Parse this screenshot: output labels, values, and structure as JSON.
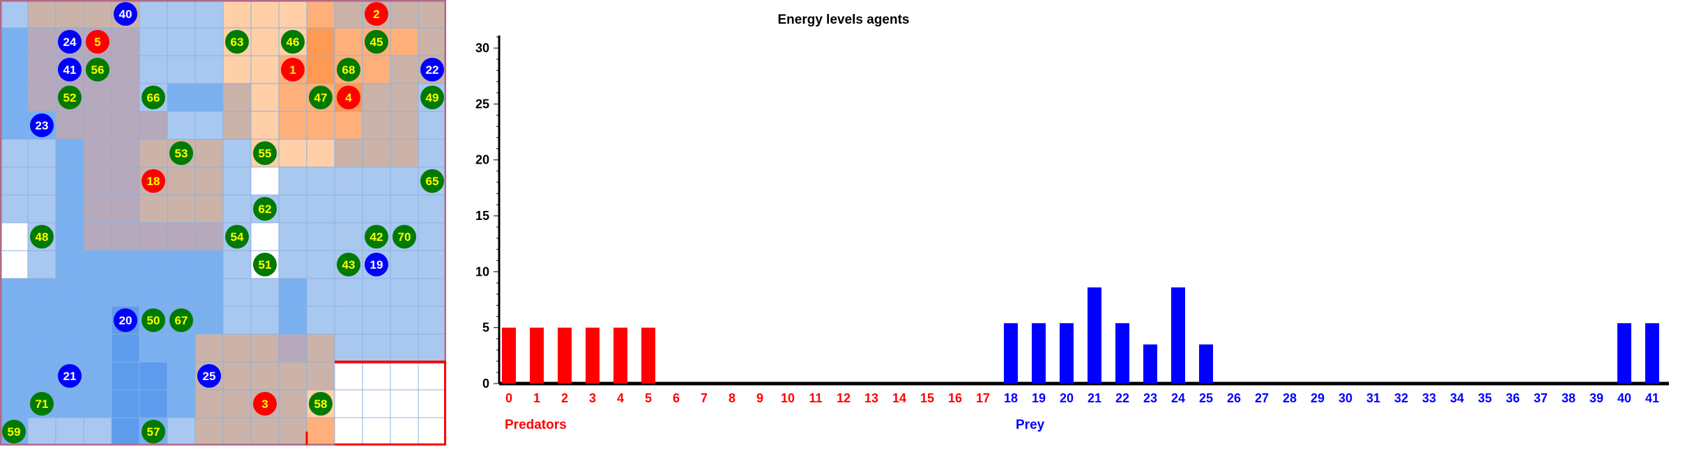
{
  "grid": {
    "rows": 16,
    "cols": 16,
    "cell_colors": [
      [
        "#a9c8f0",
        "#cbb3a9",
        "#cbb3a9",
        "#cbb3a9",
        "#cbb3a9",
        "#a9c8f0",
        "#a9c8f0",
        "#a9c8f0",
        "#ffd0a8",
        "#ffd0a8",
        "#ffd0a8",
        "#ffb07a",
        "#cbb3a9",
        "#cbb3a9",
        "#cbb3a9",
        "#cbb3a9"
      ],
      [
        "#7ab0ef",
        "#b6a9bc",
        "#b6a9bc",
        "#b6a9bc",
        "#b6a9bc",
        "#a9c8f0",
        "#a9c8f0",
        "#a9c8f0",
        "#ffd0a8",
        "#ffd0a8",
        "#ffd0a8",
        "#ff9a55",
        "#ffb07a",
        "#ffb07a",
        "#ffb07a",
        "#cbb3a9"
      ],
      [
        "#7ab0ef",
        "#b6a9bc",
        "#b6a9bc",
        "#b6a9bc",
        "#b6a9bc",
        "#a9c8f0",
        "#a9c8f0",
        "#a9c8f0",
        "#ffd0a8",
        "#ffd0a8",
        "#ffb07a",
        "#ff9a55",
        "#ffb07a",
        "#ffb07a",
        "#cbb3a9",
        "#cbb3a9"
      ],
      [
        "#7ab0ef",
        "#b6a9bc",
        "#b6a9bc",
        "#b6a9bc",
        "#b6a9bc",
        "#a9c8f0",
        "#7ab0ef",
        "#7ab0ef",
        "#cbb3a9",
        "#ffd0a8",
        "#ffb07a",
        "#ffb07a",
        "#ff9a55",
        "#cbb3a9",
        "#cbb3a9",
        "#a9c8f0"
      ],
      [
        "#7ab0ef",
        "#7ab0ef",
        "#b6a9bc",
        "#b6a9bc",
        "#b6a9bc",
        "#b6a9bc",
        "#a9c8f0",
        "#a9c8f0",
        "#cbb3a9",
        "#ffd0a8",
        "#ffb07a",
        "#ffb07a",
        "#ffb07a",
        "#cbb3a9",
        "#cbb3a9",
        "#a9c8f0"
      ],
      [
        "#a9c8f0",
        "#a9c8f0",
        "#7ab0ef",
        "#b6a9bc",
        "#b6a9bc",
        "#cbb3a9",
        "#cbb3a9",
        "#cbb3a9",
        "#a9c8f0",
        "#ffd0a8",
        "#ffd0a8",
        "#ffd0a8",
        "#cbb3a9",
        "#cbb3a9",
        "#cbb3a9",
        "#a9c8f0"
      ],
      [
        "#a9c8f0",
        "#a9c8f0",
        "#7ab0ef",
        "#b6a9bc",
        "#b6a9bc",
        "#cbb3a9",
        "#cbb3a9",
        "#cbb3a9",
        "#a9c8f0",
        "#ffffff",
        "#a9c8f0",
        "#a9c8f0",
        "#a9c8f0",
        "#a9c8f0",
        "#a9c8f0",
        "#a9c8f0"
      ],
      [
        "#a9c8f0",
        "#a9c8f0",
        "#7ab0ef",
        "#b6a9bc",
        "#b6a9bc",
        "#cbb3a9",
        "#cbb3a9",
        "#cbb3a9",
        "#a9c8f0",
        "#a9c8f0",
        "#a9c8f0",
        "#a9c8f0",
        "#a9c8f0",
        "#a9c8f0",
        "#a9c8f0",
        "#a9c8f0"
      ],
      [
        "#ffffff",
        "#a9c8f0",
        "#7ab0ef",
        "#b6a9bc",
        "#b6a9bc",
        "#b6a9bc",
        "#b6a9bc",
        "#b6a9bc",
        "#a9c8f0",
        "#ffffff",
        "#a9c8f0",
        "#a9c8f0",
        "#a9c8f0",
        "#a9c8f0",
        "#a9c8f0",
        "#a9c8f0"
      ],
      [
        "#ffffff",
        "#a9c8f0",
        "#7ab0ef",
        "#7ab0ef",
        "#7ab0ef",
        "#7ab0ef",
        "#7ab0ef",
        "#7ab0ef",
        "#a9c8f0",
        "#ffffff",
        "#a9c8f0",
        "#a9c8f0",
        "#a9c8f0",
        "#a9c8f0",
        "#a9c8f0",
        "#a9c8f0"
      ],
      [
        "#7ab0ef",
        "#7ab0ef",
        "#7ab0ef",
        "#7ab0ef",
        "#7ab0ef",
        "#7ab0ef",
        "#7ab0ef",
        "#7ab0ef",
        "#a9c8f0",
        "#a9c8f0",
        "#7ab0ef",
        "#a9c8f0",
        "#a9c8f0",
        "#a9c8f0",
        "#a9c8f0",
        "#a9c8f0"
      ],
      [
        "#7ab0ef",
        "#7ab0ef",
        "#7ab0ef",
        "#7ab0ef",
        "#5d9cec",
        "#7ab0ef",
        "#7ab0ef",
        "#7ab0ef",
        "#a9c8f0",
        "#a9c8f0",
        "#7ab0ef",
        "#a9c8f0",
        "#a9c8f0",
        "#a9c8f0",
        "#a9c8f0",
        "#a9c8f0"
      ],
      [
        "#7ab0ef",
        "#7ab0ef",
        "#7ab0ef",
        "#7ab0ef",
        "#5d9cec",
        "#7ab0ef",
        "#7ab0ef",
        "#cbb3a9",
        "#cbb3a9",
        "#cbb3a9",
        "#b6a9bc",
        "#cbb3a9",
        "#a9c8f0",
        "#a9c8f0",
        "#a9c8f0",
        "#a9c8f0"
      ],
      [
        "#7ab0ef",
        "#7ab0ef",
        "#7ab0ef",
        "#7ab0ef",
        "#5d9cec",
        "#5d9cec",
        "#7ab0ef",
        "#cbb3a9",
        "#cbb3a9",
        "#cbb3a9",
        "#cbb3a9",
        "#cbb3a9",
        "#ffffff",
        "#ffffff",
        "#ffffff",
        "#ffffff"
      ],
      [
        "#7ab0ef",
        "#7ab0ef",
        "#7ab0ef",
        "#7ab0ef",
        "#5d9cec",
        "#5d9cec",
        "#7ab0ef",
        "#cbb3a9",
        "#cbb3a9",
        "#cbb3a9",
        "#cbb3a9",
        "#ffd0a8",
        "#ffffff",
        "#ffffff",
        "#ffffff",
        "#ffffff"
      ],
      [
        "#7ab0ef",
        "#a9c8f0",
        "#a9c8f0",
        "#a9c8f0",
        "#5d9cec",
        "#7ab0ef",
        "#a9c8f0",
        "#cbb3a9",
        "#cbb3a9",
        "#cbb3a9",
        "#cbb3a9",
        "#ffb07a",
        "#ffffff",
        "#ffffff",
        "#ffffff",
        "#ffffff"
      ]
    ],
    "agents": [
      {
        "label": "40",
        "kind": "prey",
        "col": 4,
        "row": 0
      },
      {
        "label": "2",
        "kind": "predator",
        "col": 13,
        "row": 0
      },
      {
        "label": "24",
        "kind": "prey",
        "col": 2,
        "row": 1
      },
      {
        "label": "5",
        "kind": "predator",
        "col": 3,
        "row": 1
      },
      {
        "label": "63",
        "kind": "green",
        "col": 8,
        "row": 1
      },
      {
        "label": "46",
        "kind": "green",
        "col": 10,
        "row": 1
      },
      {
        "label": "45",
        "kind": "green",
        "col": 13,
        "row": 1
      },
      {
        "label": "41",
        "kind": "prey",
        "col": 2,
        "row": 2
      },
      {
        "label": "56",
        "kind": "green",
        "col": 3,
        "row": 2
      },
      {
        "label": "1",
        "kind": "predator",
        "col": 10,
        "row": 2
      },
      {
        "label": "68",
        "kind": "green",
        "col": 12,
        "row": 2
      },
      {
        "label": "22",
        "kind": "prey",
        "col": 15,
        "row": 2
      },
      {
        "label": "52",
        "kind": "green",
        "col": 2,
        "row": 3
      },
      {
        "label": "66",
        "kind": "green",
        "col": 5,
        "row": 3
      },
      {
        "label": "47",
        "kind": "green",
        "col": 11,
        "row": 3
      },
      {
        "label": "4",
        "kind": "predator",
        "col": 12,
        "row": 3
      },
      {
        "label": "49",
        "kind": "green",
        "col": 15,
        "row": 3
      },
      {
        "label": "23",
        "kind": "prey",
        "col": 1,
        "row": 4
      },
      {
        "label": "53",
        "kind": "green",
        "col": 6,
        "row": 5
      },
      {
        "label": "55",
        "kind": "green",
        "col": 9,
        "row": 5
      },
      {
        "label": "18",
        "kind": "predator",
        "col": 5,
        "row": 6
      },
      {
        "label": "65",
        "kind": "green",
        "col": 15,
        "row": 6
      },
      {
        "label": "62",
        "kind": "green",
        "col": 9,
        "row": 7
      },
      {
        "label": "48",
        "kind": "green",
        "col": 1,
        "row": 8
      },
      {
        "label": "54",
        "kind": "green",
        "col": 8,
        "row": 8
      },
      {
        "label": "42",
        "kind": "green",
        "col": 13,
        "row": 8
      },
      {
        "label": "70",
        "kind": "green",
        "col": 14,
        "row": 8
      },
      {
        "label": "51",
        "kind": "green",
        "col": 9,
        "row": 9
      },
      {
        "label": "43",
        "kind": "green",
        "col": 12,
        "row": 9
      },
      {
        "label": "19",
        "kind": "prey",
        "col": 13,
        "row": 9
      },
      {
        "label": "20",
        "kind": "prey",
        "col": 4,
        "row": 11
      },
      {
        "label": "50",
        "kind": "green",
        "col": 5,
        "row": 11
      },
      {
        "label": "67",
        "kind": "green",
        "col": 6,
        "row": 11
      },
      {
        "label": "21",
        "kind": "prey",
        "col": 2,
        "row": 13
      },
      {
        "label": "25",
        "kind": "prey",
        "col": 7,
        "row": 13
      },
      {
        "label": "71",
        "kind": "green",
        "col": 1,
        "row": 14
      },
      {
        "label": "3",
        "kind": "predator",
        "col": 9,
        "row": 14
      },
      {
        "label": "58",
        "kind": "green",
        "col": 11,
        "row": 14
      },
      {
        "label": "59",
        "kind": "green",
        "col": 0,
        "row": 15
      },
      {
        "label": "57",
        "kind": "green",
        "col": 5,
        "row": 15
      }
    ]
  },
  "chart_data": {
    "type": "bar",
    "title": "Energy levels agents",
    "xlabel": "",
    "ylabel": "",
    "ylim": [
      0,
      31
    ],
    "yticks": [
      "0",
      "5",
      "10",
      "15",
      "20",
      "25",
      "30"
    ],
    "grid": false,
    "categories": [
      "0",
      "1",
      "2",
      "3",
      "4",
      "5",
      "6",
      "7",
      "8",
      "9",
      "10",
      "11",
      "12",
      "13",
      "14",
      "15",
      "16",
      "17",
      "18",
      "19",
      "20",
      "21",
      "22",
      "23",
      "24",
      "25",
      "26",
      "27",
      "28",
      "29",
      "30",
      "31",
      "32",
      "33",
      "34",
      "35",
      "36",
      "37",
      "38",
      "39",
      "40",
      "41"
    ],
    "values": [
      5,
      5,
      5,
      5,
      5,
      5,
      0,
      0,
      0,
      0,
      0,
      0,
      0,
      0,
      0,
      0,
      0,
      0,
      5.4,
      5.4,
      5.4,
      8.6,
      5.4,
      3.5,
      8.6,
      3.5,
      0,
      0,
      0,
      0,
      0,
      0,
      0,
      0,
      0,
      0,
      0,
      0,
      0,
      0,
      5.4,
      5.4
    ],
    "groups": [
      {
        "name": "Predators",
        "color": "#ff0000",
        "from": 0,
        "to": 17
      },
      {
        "name": "Prey",
        "color": "#0000ff",
        "from": 18,
        "to": 41
      }
    ]
  },
  "colors": {
    "predator": "#ff0000",
    "prey": "#0000ff",
    "green_agent": "#007a00",
    "predator_text": "#ffff00",
    "prey_text": "#ffffff",
    "green_text": "#ffff00"
  }
}
